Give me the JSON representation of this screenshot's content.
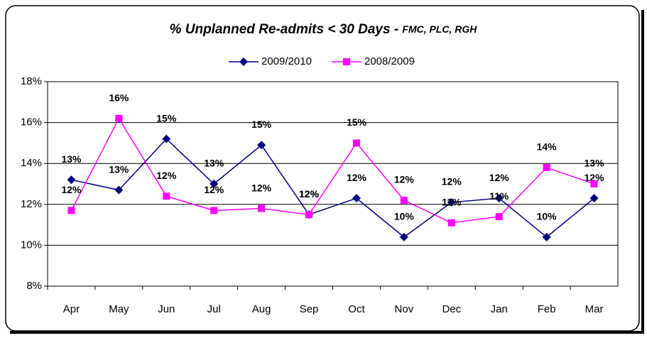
{
  "chart_data": {
    "type": "line",
    "title": "% Unplanned Re-admits < 30 Days - ",
    "title_suffix": "FMC, PLC, RGH",
    "categories": [
      "Apr",
      "May",
      "Jun",
      "Jul",
      "Aug",
      "Sep",
      "Oct",
      "Nov",
      "Dec",
      "Jan",
      "Feb",
      "Mar"
    ],
    "series": [
      {
        "name": "2009/2010",
        "color": "#000080",
        "marker": "diamond",
        "values": [
          13.2,
          12.7,
          15.2,
          13.0,
          14.9,
          11.5,
          12.3,
          10.4,
          12.1,
          12.3,
          10.4,
          12.3
        ],
        "value_labels": [
          "13%",
          "13%",
          "15%",
          "13%",
          "15%",
          "12%",
          "12%",
          "10%",
          "12%",
          "12%",
          "10%",
          "12%"
        ]
      },
      {
        "name": "2008/2009",
        "color": "#ff00ff",
        "marker": "square",
        "values": [
          11.7,
          16.2,
          12.4,
          11.7,
          11.8,
          11.5,
          15.0,
          12.2,
          11.1,
          11.4,
          13.8,
          13.0
        ],
        "value_labels": [
          "12%",
          "16%",
          "12%",
          "12%",
          "12%",
          "12%",
          "15%",
          "12%",
          "11%",
          "11%",
          "14%",
          "13%"
        ]
      }
    ],
    "ylim": [
      8,
      18
    ],
    "yticks": [
      {
        "value": 8,
        "label": "8%"
      },
      {
        "value": 10,
        "label": "10%"
      },
      {
        "value": 12,
        "label": "12%"
      },
      {
        "value": 14,
        "label": "14%"
      },
      {
        "value": 16,
        "label": "16%"
      },
      {
        "value": 18,
        "label": "18%"
      }
    ],
    "grid": true,
    "legend": "top"
  }
}
